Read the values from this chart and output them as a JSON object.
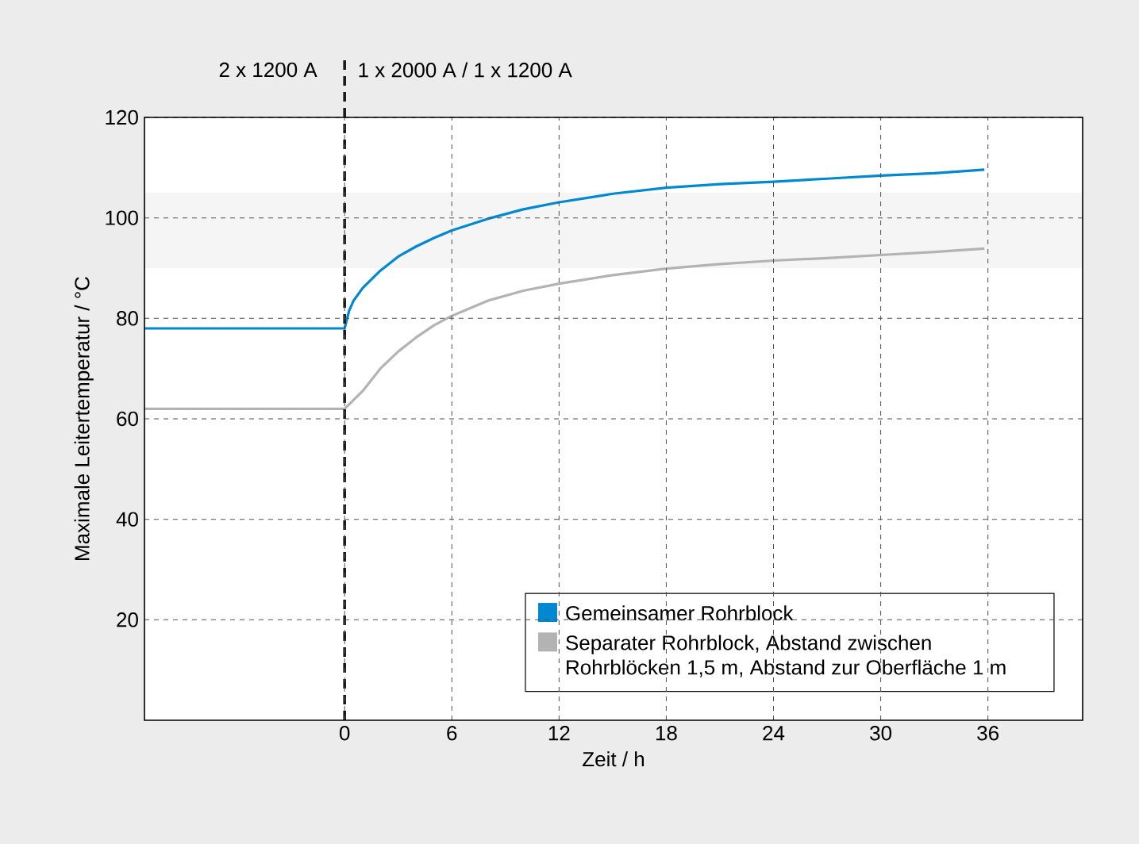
{
  "chart_data": {
    "type": "line",
    "xlabel": "Zeit / h",
    "ylabel": "Maximale Leitertemperatur / °C",
    "xlim": [
      -11.2,
      41.3
    ],
    "ylim": [
      0,
      120
    ],
    "xticks": [
      0,
      6,
      12,
      18,
      24,
      30,
      36
    ],
    "yticks": [
      20,
      40,
      60,
      80,
      100,
      120
    ],
    "grid": true,
    "legend": "bottom right",
    "annotations": [
      "2 x 1200 A",
      "1 x 2000 A / 1 x 1200 A"
    ],
    "ref_lines": [
      {
        "axis": "x",
        "value": 0,
        "color": "#1a1a1a",
        "line_style": "dashed"
      }
    ],
    "bands": [
      {
        "axis": "y",
        "from": 90,
        "to": 105,
        "color": "#f5f5f5"
      }
    ],
    "series": [
      {
        "name": "Gemeinsamer Rohrblock",
        "color": "#0088d1",
        "x": [
          -11.2,
          0,
          0.25,
          0.5,
          1,
          2,
          3,
          4,
          5,
          6,
          8,
          10,
          12,
          15,
          18,
          21,
          24,
          27,
          30,
          33,
          35.8
        ],
        "values": [
          78,
          78,
          81.5,
          83.5,
          86,
          89.5,
          92.3,
          94.3,
          96,
          97.5,
          99.8,
          101.7,
          103.1,
          104.8,
          106,
          106.7,
          107.2,
          107.8,
          108.4,
          108.9,
          109.6
        ]
      },
      {
        "name": "Separater Rohrblock, Abstand zwischen Rohrblöcken 1,5 m, Abstand zur Oberfläche 1 m",
        "color": "#b3b3b3",
        "x": [
          -11.2,
          0,
          1,
          2,
          3,
          4,
          5,
          6,
          8,
          10,
          12,
          15,
          18,
          21,
          24,
          27,
          30,
          33,
          35.8
        ],
        "values": [
          62,
          62,
          65.5,
          70,
          73.4,
          76.2,
          78.6,
          80.5,
          83.5,
          85.5,
          86.9,
          88.6,
          89.9,
          90.8,
          91.5,
          92,
          92.6,
          93.2,
          93.9
        ]
      }
    ]
  }
}
